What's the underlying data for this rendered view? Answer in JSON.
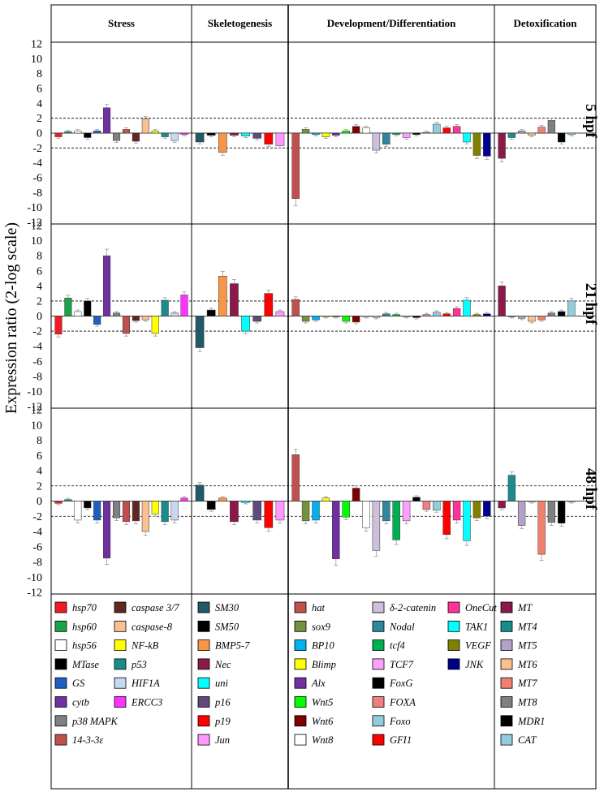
{
  "chart_data": {
    "type": "bar",
    "ylabel": "Expression ratio (2-log scale)",
    "ylim": [
      -12,
      12
    ],
    "yticks": [
      -12,
      -10,
      -8,
      -6,
      -4,
      -2,
      0,
      2,
      4,
      6,
      8,
      10,
      12
    ],
    "threshold_lines": [
      2,
      -2
    ],
    "grid": false,
    "legend_position": "bottom",
    "groups": [
      {
        "name": "Stress",
        "genes": [
          "hsp70",
          "hsp60",
          "hsp56",
          "MTase",
          "GS",
          "cytb",
          "p38 MAPK",
          "14-3-3ε",
          "caspase 3/7",
          "caspase-8",
          "NF-kB",
          "p53",
          "HIF1A",
          "ERCC3"
        ]
      },
      {
        "name": "Skeletogenesis",
        "genes": [
          "SM30",
          "SM50",
          "BMP5-7",
          "Nec",
          "uni",
          "p16",
          "p19",
          "Jun"
        ]
      },
      {
        "name": "Development/Differentiation",
        "genes": [
          "hat",
          "sox9",
          "BP10",
          "Blimp",
          "Alx",
          "Wnt5",
          "Wnt6",
          "Wnt8",
          "δ-2-catenin",
          "Nodal",
          "tcf4",
          "TCF7",
          "FoxG",
          "FOXA",
          "Foxo",
          "GFI1",
          "OneCut",
          "TAK1",
          "VEGF",
          "JNK"
        ]
      },
      {
        "name": "Detoxification",
        "genes": [
          "MT",
          "MT4",
          "MT5",
          "MT6",
          "MT7",
          "MT8",
          "MDR1",
          "CAT"
        ]
      }
    ],
    "colors": {
      "hsp70": "#ee1c24",
      "hsp60": "#1aa34a",
      "hsp56": "#ffffff",
      "MTase": "#000000",
      "GS": "#1f5fbf",
      "cytb": "#7030a0",
      "p38 MAPK": "#808080",
      "14-3-3ε": "#c0504d",
      "caspase 3/7": "#632523",
      "caspase-8": "#fac090",
      "NF-kB": "#ffff00",
      "p53": "#1a8c8c",
      "HIF1A": "#c6d9f1",
      "ERCC3": "#ff33ff",
      "SM30": "#215967",
      "SM50": "#000000",
      "BMP5-7": "#f79646",
      "Nec": "#8b1a4a",
      "uni": "#00ffff",
      "p16": "#604a7b",
      "p19": "#ff0000",
      "Jun": "#ff99ff",
      "hat": "#c0504d",
      "sox9": "#76923c",
      "BP10": "#00b0f0",
      "Blimp": "#ffff00",
      "Alx": "#7030a0",
      "Wnt5": "#00ff00",
      "Wnt6": "#7f0000",
      "Wnt8": "#ffffff",
      "δ-2-catenin": "#ccc0da",
      "Nodal": "#31859c",
      "tcf4": "#00b050",
      "TCF7": "#ffa0ff",
      "FoxG": "#000000",
      "FOXA": "#f08080",
      "Foxo": "#92cddc",
      "GFI1": "#ff0000",
      "OneCut": "#ff3399",
      "TAK1": "#00ffff",
      "VEGF": "#808000",
      "JNK": "#00008b",
      "MT": "#8b1a4a",
      "MT4": "#1a8c8c",
      "MT5": "#b3a2c7",
      "MT6": "#fac090",
      "MT7": "#f08070",
      "MT8": "#808080",
      "MDR1": "#000000",
      "CAT": "#92cddc"
    },
    "panels": [
      {
        "label": "5 hpf",
        "values": {
          "Stress": [
            -0.5,
            0.2,
            0.3,
            -0.6,
            0.3,
            3.4,
            -1.0,
            0.5,
            -1.1,
            1.9,
            0.3,
            -0.5,
            -1.0,
            -0.2
          ],
          "Skeletogenesis": [
            -1.2,
            -0.3,
            -2.6,
            -0.3,
            -0.4,
            -0.7,
            -1.5,
            -1.7
          ],
          "Development/Differentiation": [
            -8.8,
            0.5,
            -0.2,
            -0.5,
            -0.3,
            0.3,
            0.9,
            0.7,
            -2.3,
            -1.5,
            -0.2,
            -0.6,
            -0.2,
            0.1,
            1.2,
            0.7,
            0.9,
            -1.2,
            -3.0,
            -3.1
          ],
          "Detoxification": [
            -3.4,
            -0.6,
            0.3,
            -0.3,
            0.8,
            1.7,
            -1.2,
            -0.2
          ]
        }
      },
      {
        "label": "21 hpf",
        "values": {
          "Stress": [
            -2.4,
            2.4,
            0.6,
            2.0,
            -1.1,
            8.0,
            0.4,
            -2.3,
            -0.6,
            -0.5,
            -2.3,
            2.1,
            0.4,
            2.8
          ],
          "Skeletogenesis": [
            -4.2,
            0.8,
            5.3,
            4.3,
            -2.0,
            -0.7,
            3.0,
            0.6
          ],
          "Development/Differentiation": [
            2.2,
            -0.7,
            -0.5,
            -0.1,
            -0.1,
            -0.7,
            -0.8,
            -0.1,
            -0.2,
            0.3,
            0.2,
            -0.1,
            -0.2,
            0.2,
            0.5,
            0.3,
            1.0,
            2.1,
            0.2,
            0.3
          ],
          "Detoxification": [
            4.0,
            -0.1,
            -0.3,
            -0.7,
            -0.5,
            0.4,
            0.6,
            2.0
          ]
        }
      },
      {
        "label": "48 hpf",
        "values": {
          "Stress": [
            -0.3,
            0.2,
            -2.5,
            -0.9,
            -2.5,
            -7.5,
            -2.2,
            -2.7,
            -2.6,
            -4.0,
            -1.7,
            -2.7,
            -2.5,
            0.4
          ],
          "Skeletogenesis": [
            2.1,
            -1.1,
            0.4,
            -2.7,
            -0.2,
            -2.5,
            -3.5,
            -2.5
          ],
          "Development/Differentiation": [
            6.1,
            -2.6,
            -2.5,
            0.4,
            -7.6,
            -2.1,
            1.7,
            -3.5,
            -6.5,
            -2.6,
            -5.1,
            -2.6,
            0.5,
            -1.1,
            -1.2,
            -4.4,
            -2.5,
            -5.2,
            -2.2,
            -2.0
          ],
          "Detoxification": [
            -0.9,
            3.4,
            -3.2,
            -0.1,
            -7.0,
            -2.8,
            -2.9,
            -0.1
          ]
        }
      }
    ],
    "legend_columns": [
      [
        "hsp70",
        "hsp60",
        "hsp56",
        "MTase",
        "GS",
        "cytb",
        "p38 MAPK",
        "14-3-3ε"
      ],
      [
        "caspase 3/7",
        "caspase-8",
        "NF-kB",
        "p53",
        "HIF1A",
        "ERCC3"
      ],
      [
        "SM30",
        "SM50",
        "BMP5-7",
        "Nec",
        "uni",
        "p16",
        "p19",
        "Jun"
      ],
      [
        "hat",
        "sox9",
        "BP10",
        "Blimp",
        "Alx",
        "Wnt5",
        "Wnt6",
        "Wnt8"
      ],
      [
        "δ-2-catenin",
        "Nodal",
        "tcf4",
        "TCF7",
        "FoxG",
        "FOXA",
        "Foxo",
        "GFI1"
      ],
      [
        "OneCut",
        "TAK1",
        "VEGF",
        "JNK"
      ],
      [
        "MT",
        "MT4",
        "MT5",
        "MT6",
        "MT7",
        "MT8",
        "MDR1",
        "CAT"
      ]
    ]
  }
}
